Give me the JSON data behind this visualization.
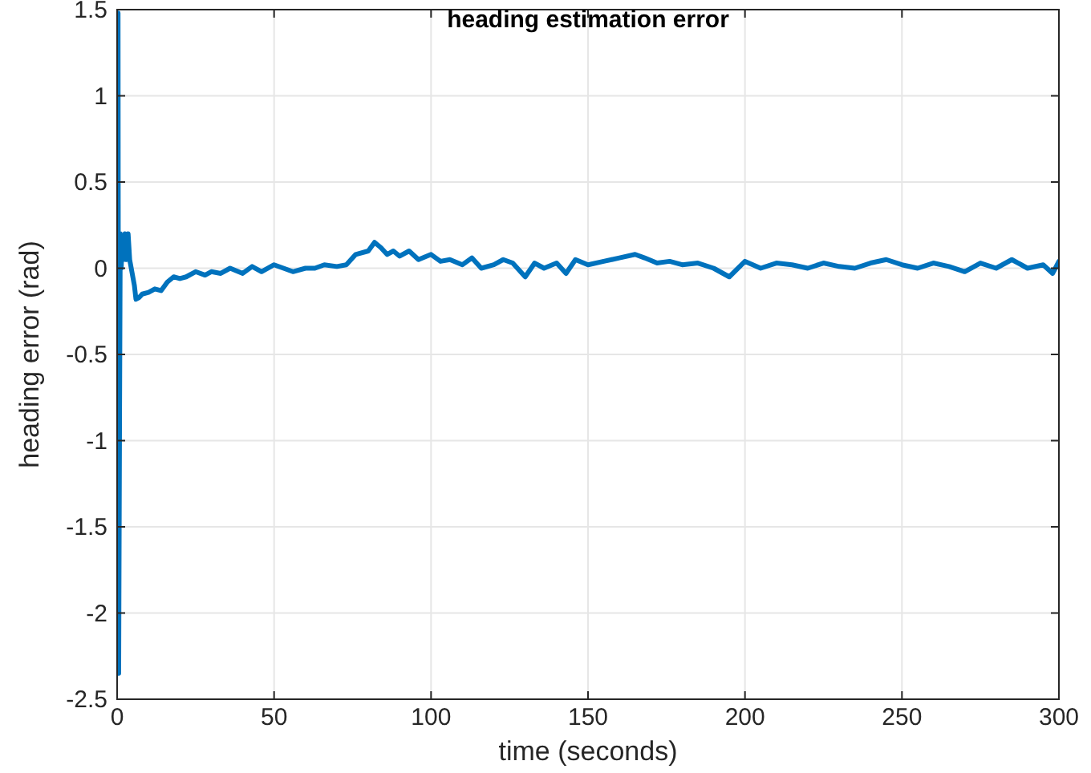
{
  "chart_data": {
    "type": "line",
    "title": "heading estimation error",
    "xlabel": "time (seconds)",
    "ylabel": "heading error (rad)",
    "x": [
      0,
      0.3,
      0.5,
      0.8,
      1.0,
      1.3,
      1.6,
      2,
      2.5,
      3,
      3.5,
      4,
      4.5,
      5,
      5.5,
      6,
      7,
      8,
      10,
      12,
      14,
      16,
      18,
      20,
      22,
      25,
      28,
      30,
      33,
      36,
      40,
      43,
      46,
      50,
      53,
      56,
      60,
      63,
      66,
      70,
      73,
      76,
      80,
      82,
      84,
      86,
      88,
      90,
      93,
      96,
      100,
      103,
      106,
      110,
      113,
      116,
      120,
      123,
      126,
      130,
      133,
      136,
      140,
      143,
      146,
      150,
      155,
      160,
      165,
      168,
      172,
      176,
      180,
      185,
      190,
      195,
      200,
      205,
      210,
      215,
      220,
      225,
      230,
      235,
      240,
      245,
      250,
      255,
      260,
      265,
      270,
      275,
      280,
      285,
      290,
      295,
      298,
      300
    ],
    "series": [
      {
        "color": "#0072bd",
        "values": [
          0.7,
          1.48,
          -2.35,
          -0.75,
          0.2,
          0.0,
          0.15,
          0.05,
          0.2,
          0.05,
          0.2,
          0.05,
          0.0,
          -0.05,
          -0.1,
          -0.18,
          -0.17,
          -0.15,
          -0.14,
          -0.12,
          -0.13,
          -0.08,
          -0.05,
          -0.06,
          -0.05,
          -0.02,
          -0.04,
          -0.02,
          -0.03,
          0.0,
          -0.03,
          0.01,
          -0.02,
          0.02,
          0.0,
          -0.02,
          0.0,
          0.0,
          0.02,
          0.01,
          0.02,
          0.08,
          0.1,
          0.15,
          0.12,
          0.08,
          0.1,
          0.07,
          0.1,
          0.05,
          0.08,
          0.04,
          0.05,
          0.02,
          0.06,
          0.0,
          0.02,
          0.05,
          0.03,
          -0.05,
          0.03,
          0.0,
          0.03,
          -0.03,
          0.05,
          0.02,
          0.04,
          0.06,
          0.08,
          0.06,
          0.03,
          0.04,
          0.02,
          0.03,
          0.0,
          -0.05,
          0.04,
          0.0,
          0.03,
          0.02,
          0.0,
          0.03,
          0.01,
          0.0,
          0.03,
          0.05,
          0.02,
          0.0,
          0.03,
          0.01,
          -0.02,
          0.03,
          0.0,
          0.05,
          0.0,
          0.02,
          -0.03,
          0.04
        ]
      }
    ],
    "xlim": [
      0,
      300
    ],
    "xticks": [
      0,
      50,
      100,
      150,
      200,
      250,
      300
    ],
    "ylim": [
      -2.5,
      1.5
    ],
    "yticks": [
      -2.5,
      -2,
      -1.5,
      -1,
      -0.5,
      0,
      0.5,
      1,
      1.5
    ],
    "grid": true,
    "line_style": "solid"
  }
}
